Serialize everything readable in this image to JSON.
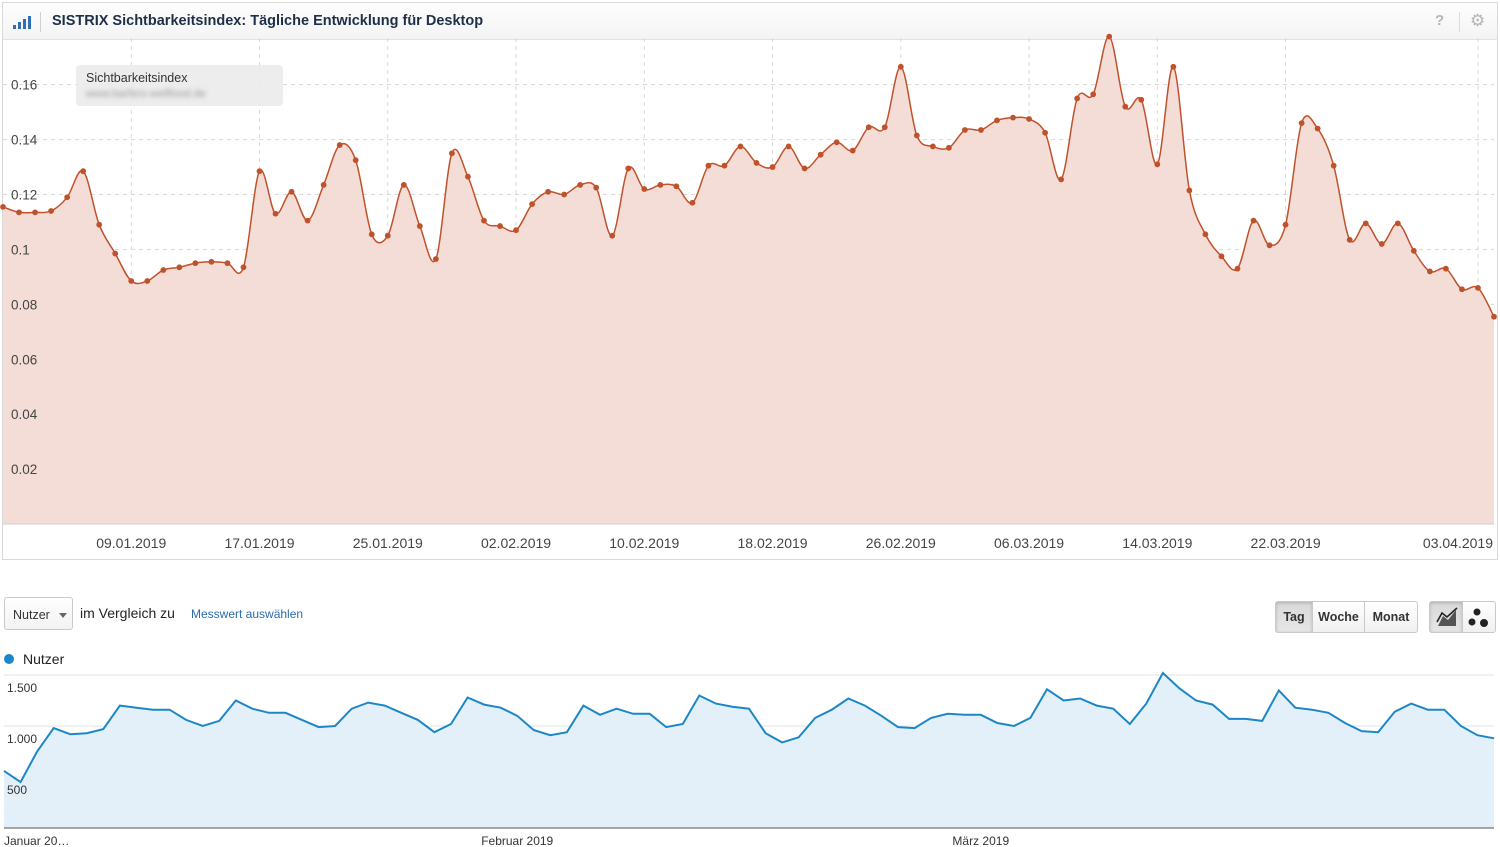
{
  "header": {
    "title": "SISTRIX Sichtbarkeitsindex: Tägliche Entwicklung für Desktop",
    "help_icon": "?",
    "gear_icon": "⚙"
  },
  "chart_data": [
    {
      "type": "area",
      "title": "SISTRIX Sichtbarkeitsindex: Tägliche Entwicklung für Desktop",
      "ylim": [
        0,
        0.177
      ],
      "y_ticks": [
        "0.02",
        "0.04",
        "0.06",
        "0.08",
        "0.1",
        "0.12",
        "0.14",
        "0.16"
      ],
      "y_tick_values": [
        0.02,
        0.04,
        0.06,
        0.08,
        0.1,
        0.12,
        0.14,
        0.16
      ],
      "x_ticks": [
        "09.01.2019",
        "17.01.2019",
        "25.01.2019",
        "02.02.2019",
        "10.02.2019",
        "18.02.2019",
        "26.02.2019",
        "06.03.2019",
        "14.03.2019",
        "22.03.2019",
        "03.04.2019"
      ],
      "x_start": "2019-01-01",
      "x_end": "2019-04-04",
      "line_color": "#c0522b",
      "fill_color": "#f3ddd6",
      "series": [
        {
          "name": "Sichtbarkeitsindex",
          "values": [
            0.1155,
            0.1135,
            0.1135,
            0.114,
            0.119,
            0.1285,
            0.109,
            0.0985,
            0.0885,
            0.0885,
            0.0925,
            0.0935,
            0.095,
            0.0955,
            0.095,
            0.0935,
            0.1285,
            0.113,
            0.121,
            0.1105,
            0.1235,
            0.138,
            0.1325,
            0.1055,
            0.105,
            0.1235,
            0.1085,
            0.0965,
            0.135,
            0.1265,
            0.1105,
            0.1085,
            0.107,
            0.1165,
            0.121,
            0.12,
            0.1235,
            0.1225,
            0.105,
            0.1295,
            0.122,
            0.1235,
            0.123,
            0.117,
            0.1305,
            0.1305,
            0.1375,
            0.1315,
            0.13,
            0.1375,
            0.1295,
            0.1345,
            0.139,
            0.136,
            0.1445,
            0.1445,
            0.1665,
            0.1415,
            0.1375,
            0.137,
            0.1435,
            0.1435,
            0.147,
            0.148,
            0.1475,
            0.1425,
            0.1255,
            0.155,
            0.1565,
            0.1775,
            0.152,
            0.1545,
            0.131,
            0.1665,
            0.1215,
            0.1055,
            0.0975,
            0.093,
            0.1105,
            0.1015,
            0.109,
            0.146,
            0.144,
            0.1305,
            0.1035,
            0.1095,
            0.102,
            0.1095,
            0.0995,
            0.092,
            0.093,
            0.0855,
            0.086,
            0.0755
          ]
        }
      ],
      "tooltip": {
        "label": "Sichtbarkeitsindex",
        "domain": "www.barfers-wellfood.de"
      }
    },
    {
      "type": "area",
      "legend": "Nutzer",
      "y_ticks": [
        "500",
        "1.000",
        "1.500"
      ],
      "y_tick_values": [
        500,
        1000,
        1500
      ],
      "ylim": [
        0,
        1530
      ],
      "x_ticks": [
        "Januar 20…",
        "Februar 2019",
        "März 2019"
      ],
      "x_start": "2019-01-01",
      "x_end": "2019-04-04",
      "line_color": "#1b87c9",
      "fill_color": "#e4f0f9",
      "series": [
        {
          "name": "Nutzer",
          "values": [
            560,
            450,
            750,
            980,
            920,
            930,
            970,
            1200,
            1180,
            1160,
            1160,
            1060,
            1000,
            1050,
            1250,
            1170,
            1130,
            1130,
            1060,
            990,
            1000,
            1170,
            1230,
            1200,
            1130,
            1060,
            940,
            1020,
            1280,
            1210,
            1180,
            1100,
            960,
            910,
            940,
            1200,
            1110,
            1170,
            1120,
            1120,
            990,
            1020,
            1300,
            1220,
            1190,
            1170,
            930,
            840,
            890,
            1080,
            1160,
            1270,
            1200,
            1100,
            990,
            980,
            1080,
            1120,
            1110,
            1110,
            1030,
            1000,
            1080,
            1360,
            1250,
            1270,
            1200,
            1170,
            1020,
            1220,
            1520,
            1370,
            1250,
            1210,
            1070,
            1070,
            1050,
            1350,
            1180,
            1160,
            1130,
            1030,
            950,
            940,
            1140,
            1220,
            1160,
            1160,
            1000,
            910,
            880
          ]
        }
      ]
    }
  ],
  "controls": {
    "metric_select": "Nutzer",
    "compare_text": "im Vergleich zu",
    "compare_link": "Messwert auswählen",
    "period_buttons": [
      "Tag",
      "Woche",
      "Monat"
    ],
    "active_period": "Tag",
    "chart_type_icons": [
      "line-chart-icon",
      "bubble-chart-icon"
    ]
  }
}
